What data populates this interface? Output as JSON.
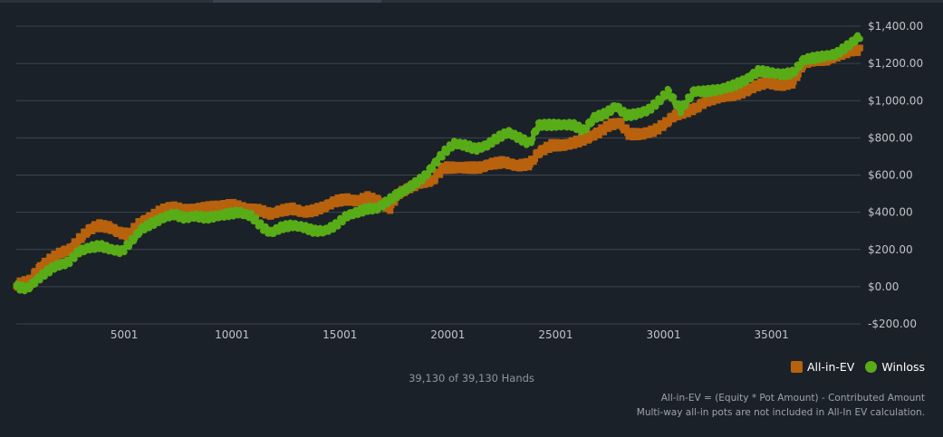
{
  "colors": {
    "background": "#1b2129",
    "grid": "#3c444e",
    "allin_ev": "#b8620e",
    "winloss": "#58ac17"
  },
  "hands_caption": "39,130 of 39,130 Hands",
  "footnote": {
    "line1": "All-in-EV = (Equity * Pot Amount) - Contributed Amount",
    "line2": "Multi-way all-in pots are not included in All-In EV calculation."
  },
  "chart_data": {
    "type": "line",
    "title": "",
    "xlabel": "",
    "ylabel": "",
    "xlim": [
      1,
      39130
    ],
    "ylim": [
      -200,
      1400
    ],
    "grid": true,
    "legend_position": "bottom-right",
    "x_ticks": [
      {
        "value": 5001,
        "label": "5001"
      },
      {
        "value": 10001,
        "label": "10001"
      },
      {
        "value": 15001,
        "label": "15001"
      },
      {
        "value": 20001,
        "label": "20001"
      },
      {
        "value": 25001,
        "label": "25001"
      },
      {
        "value": 30001,
        "label": "30001"
      },
      {
        "value": 35001,
        "label": "35001"
      }
    ],
    "y_ticks": [
      {
        "value": 1400,
        "label": "$1,400.00"
      },
      {
        "value": 1200,
        "label": "$1,200.00"
      },
      {
        "value": 1000,
        "label": "$1,000.00"
      },
      {
        "value": 800,
        "label": "$800.00"
      },
      {
        "value": 600,
        "label": "$600.00"
      },
      {
        "value": 400,
        "label": "$400.00"
      },
      {
        "value": 200,
        "label": "$200.00"
      },
      {
        "value": 0,
        "label": "$0.00"
      },
      {
        "value": -200,
        "label": "-$200.00"
      }
    ],
    "series": [
      {
        "name": "All-in-EV",
        "marker": "square",
        "points": [
          [
            1,
            10
          ],
          [
            600,
            30
          ],
          [
            1000,
            90
          ],
          [
            1500,
            140
          ],
          [
            2000,
            180
          ],
          [
            2500,
            200
          ],
          [
            2800,
            240
          ],
          [
            3300,
            300
          ],
          [
            3800,
            330
          ],
          [
            4300,
            320
          ],
          [
            4800,
            290
          ],
          [
            5200,
            280
          ],
          [
            5700,
            340
          ],
          [
            6200,
            370
          ],
          [
            6700,
            410
          ],
          [
            7200,
            430
          ],
          [
            7800,
            410
          ],
          [
            8500,
            420
          ],
          [
            9200,
            430
          ],
          [
            10000,
            440
          ],
          [
            10600,
            420
          ],
          [
            11300,
            410
          ],
          [
            11800,
            390
          ],
          [
            12300,
            410
          ],
          [
            12800,
            420
          ],
          [
            13300,
            400
          ],
          [
            13800,
            410
          ],
          [
            14300,
            430
          ],
          [
            14800,
            460
          ],
          [
            15300,
            470
          ],
          [
            15800,
            460
          ],
          [
            16300,
            480
          ],
          [
            16800,
            460
          ],
          [
            17300,
            420
          ],
          [
            17700,
            500
          ],
          [
            18200,
            530
          ],
          [
            18700,
            560
          ],
          [
            19300,
            570
          ],
          [
            19800,
            640
          ],
          [
            20400,
            640
          ],
          [
            21000,
            640
          ],
          [
            21500,
            640
          ],
          [
            22000,
            660
          ],
          [
            22600,
            670
          ],
          [
            23200,
            650
          ],
          [
            23800,
            660
          ],
          [
            24200,
            720
          ],
          [
            24800,
            760
          ],
          [
            25400,
            760
          ],
          [
            26000,
            780
          ],
          [
            26500,
            800
          ],
          [
            27000,
            830
          ],
          [
            27500,
            870
          ],
          [
            28000,
            880
          ],
          [
            28400,
            820
          ],
          [
            29000,
            820
          ],
          [
            29600,
            840
          ],
          [
            30100,
            880
          ],
          [
            30500,
            920
          ],
          [
            31000,
            940
          ],
          [
            31500,
            960
          ],
          [
            32000,
            1000
          ],
          [
            32600,
            1020
          ],
          [
            33200,
            1030
          ],
          [
            33800,
            1050
          ],
          [
            34300,
            1080
          ],
          [
            34800,
            1100
          ],
          [
            35400,
            1080
          ],
          [
            36000,
            1100
          ],
          [
            36500,
            1200
          ],
          [
            37000,
            1220
          ],
          [
            37600,
            1220
          ],
          [
            38200,
            1250
          ],
          [
            38700,
            1270
          ],
          [
            39130,
            1270
          ]
        ]
      },
      {
        "name": "Winloss",
        "marker": "circle",
        "points": [
          [
            1,
            0
          ],
          [
            500,
            -10
          ],
          [
            900,
            30
          ],
          [
            1300,
            70
          ],
          [
            1800,
            110
          ],
          [
            2400,
            130
          ],
          [
            2900,
            190
          ],
          [
            3400,
            210
          ],
          [
            3900,
            220
          ],
          [
            4400,
            200
          ],
          [
            4900,
            190
          ],
          [
            5300,
            240
          ],
          [
            5800,
            310
          ],
          [
            6300,
            340
          ],
          [
            6800,
            370
          ],
          [
            7300,
            390
          ],
          [
            7800,
            370
          ],
          [
            8300,
            380
          ],
          [
            8800,
            370
          ],
          [
            9300,
            380
          ],
          [
            9800,
            390
          ],
          [
            10300,
            400
          ],
          [
            10900,
            380
          ],
          [
            11400,
            320
          ],
          [
            11800,
            290
          ],
          [
            12300,
            320
          ],
          [
            12800,
            330
          ],
          [
            13300,
            320
          ],
          [
            13800,
            300
          ],
          [
            14300,
            300
          ],
          [
            14800,
            330
          ],
          [
            15300,
            380
          ],
          [
            15800,
            400
          ],
          [
            16300,
            420
          ],
          [
            16700,
            420
          ],
          [
            17600,
            490
          ],
          [
            18300,
            540
          ],
          [
            18900,
            590
          ],
          [
            19400,
            660
          ],
          [
            19800,
            720
          ],
          [
            20300,
            770
          ],
          [
            20800,
            760
          ],
          [
            21300,
            740
          ],
          [
            21800,
            760
          ],
          [
            22300,
            800
          ],
          [
            22800,
            830
          ],
          [
            23300,
            800
          ],
          [
            23800,
            770
          ],
          [
            24200,
            870
          ],
          [
            24800,
            870
          ],
          [
            25300,
            870
          ],
          [
            25800,
            870
          ],
          [
            26300,
            840
          ],
          [
            26800,
            910
          ],
          [
            27300,
            930
          ],
          [
            27800,
            970
          ],
          [
            28300,
            920
          ],
          [
            28800,
            930
          ],
          [
            29300,
            950
          ],
          [
            29800,
            1000
          ],
          [
            30200,
            1050
          ],
          [
            30800,
            950
          ],
          [
            31400,
            1050
          ],
          [
            32000,
            1050
          ],
          [
            32600,
            1060
          ],
          [
            33200,
            1080
          ],
          [
            33800,
            1110
          ],
          [
            34400,
            1160
          ],
          [
            35000,
            1150
          ],
          [
            35500,
            1140
          ],
          [
            36000,
            1150
          ],
          [
            36500,
            1220
          ],
          [
            37000,
            1230
          ],
          [
            37500,
            1240
          ],
          [
            38000,
            1250
          ],
          [
            38600,
            1300
          ],
          [
            39130,
            1350
          ]
        ]
      }
    ]
  }
}
